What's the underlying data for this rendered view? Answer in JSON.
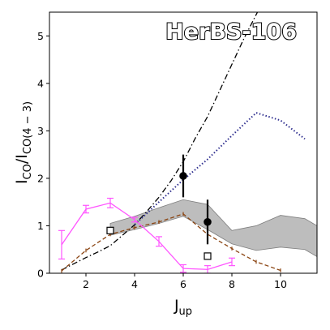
{
  "chart_data": {
    "type": "line",
    "label": "HerBS-106",
    "xlim": [
      0.5,
      11.5
    ],
    "ylim": [
      0,
      5.5
    ],
    "xticks": [
      2,
      4,
      6,
      8,
      10
    ],
    "yticks": [
      0,
      1,
      2,
      3,
      4,
      5
    ],
    "xlabel": {
      "main": "J",
      "sub": "up"
    },
    "ylabel": {
      "num": "I",
      "num_sub": "CO",
      "den": "I",
      "den_sub": "CO(4 − 3)"
    },
    "colors": {
      "band": "#bdbdbd",
      "band_edge": "#7f7f7f",
      "magenta": "#ff55ff",
      "brown": "#8b4513",
      "navy": "#2f2f8f",
      "black": "#000000"
    },
    "band": {
      "x": [
        3,
        4,
        5,
        6,
        7,
        8,
        9,
        10,
        11,
        11.5
      ],
      "upper": [
        1.05,
        1.2,
        1.38,
        1.55,
        1.45,
        0.9,
        1.0,
        1.22,
        1.15,
        1.0
      ],
      "lower": [
        0.8,
        0.92,
        1.05,
        1.2,
        0.92,
        0.62,
        0.48,
        0.55,
        0.5,
        0.35
      ]
    },
    "series": [
      {
        "style": "dashdot",
        "color": "black",
        "x": [
          1,
          1.5,
          2,
          2.5,
          3,
          3.5,
          4,
          4.5,
          5,
          5.5,
          6,
          6.5,
          7,
          7.5,
          8,
          8.5,
          9,
          9.1
        ],
        "y": [
          0.07,
          0.2,
          0.33,
          0.45,
          0.58,
          0.8,
          1.02,
          1.3,
          1.6,
          1.95,
          2.35,
          2.85,
          3.3,
          3.85,
          4.4,
          4.95,
          5.45,
          5.55
        ]
      },
      {
        "style": "dotted",
        "color": "navy",
        "x": [
          4,
          5,
          6,
          7,
          8,
          9,
          10,
          11
        ],
        "y": [
          1.02,
          1.5,
          1.97,
          2.4,
          2.9,
          3.38,
          3.22,
          2.83
        ]
      },
      {
        "style": "dashed",
        "color": "brown",
        "error_caps": true,
        "x": [
          1,
          2,
          3,
          4,
          5,
          6,
          7,
          8,
          9,
          10
        ],
        "y": [
          0.05,
          0.48,
          0.82,
          0.96,
          1.08,
          1.25,
          0.82,
          0.52,
          0.24,
          0.06
        ]
      },
      {
        "style": "solid",
        "color": "magenta",
        "error_caps": true,
        "x": [
          1,
          2,
          3,
          4,
          5,
          6,
          7,
          8
        ],
        "y": [
          0.6,
          1.35,
          1.48,
          1.13,
          0.67,
          0.1,
          0.08,
          0.24
        ],
        "yerr": [
          0.3,
          0.08,
          0.1,
          0.05,
          0.1,
          0.08,
          0.08,
          0.08
        ]
      }
    ],
    "detections": [
      {
        "x": 6,
        "y": 2.05,
        "yerr_low": 0.45,
        "yerr_high": 0.45
      },
      {
        "x": 7,
        "y": 1.08,
        "yerr_low": 0.47,
        "yerr_high": 0.47
      }
    ],
    "squares": [
      {
        "x": 3,
        "y": 0.9
      },
      {
        "x": 7,
        "y": 0.36
      }
    ]
  }
}
